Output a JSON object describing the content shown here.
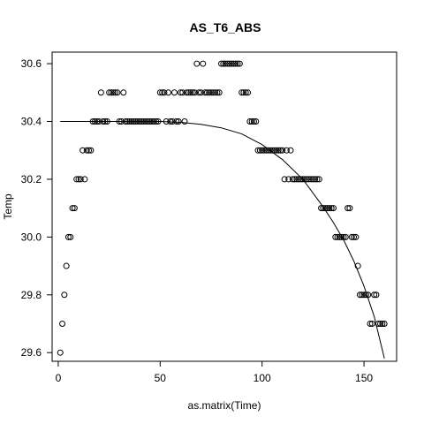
{
  "chart_data": {
    "type": "scatter",
    "title": "AS_T6_ABS",
    "xlabel": "as.matrix(Time)",
    "ylabel": "Temp",
    "xlim": [
      -3,
      166
    ],
    "ylim": [
      29.57,
      30.64
    ],
    "x_ticks": [
      "0",
      "50",
      "100",
      "150"
    ],
    "x_tick_values": [
      0,
      50,
      100,
      150
    ],
    "y_ticks": [
      "29.6",
      "29.8",
      "30.0",
      "30.2",
      "30.4",
      "30.6"
    ],
    "y_tick_values": [
      29.6,
      29.8,
      30.0,
      30.2,
      30.4,
      30.6
    ],
    "grid": false,
    "legend": "none",
    "points": [
      [
        1,
        29.6
      ],
      [
        2,
        29.7
      ],
      [
        3,
        29.8
      ],
      [
        4,
        29.9
      ],
      [
        5,
        30.0
      ],
      [
        6,
        30.0
      ],
      [
        7,
        30.1
      ],
      [
        8,
        30.1
      ],
      [
        9,
        30.2
      ],
      [
        10,
        30.2
      ],
      [
        11,
        30.2
      ],
      [
        12,
        30.3
      ],
      [
        13,
        30.2
      ],
      [
        14,
        30.3
      ],
      [
        15,
        30.3
      ],
      [
        16,
        30.3
      ],
      [
        17,
        30.4
      ],
      [
        18,
        30.4
      ],
      [
        19,
        30.4
      ],
      [
        20,
        30.4
      ],
      [
        21,
        30.5
      ],
      [
        22,
        30.4
      ],
      [
        23,
        30.4
      ],
      [
        24,
        30.4
      ],
      [
        25,
        30.5
      ],
      [
        26,
        30.5
      ],
      [
        27,
        30.5
      ],
      [
        28,
        30.5
      ],
      [
        29,
        30.5
      ],
      [
        30,
        30.4
      ],
      [
        31,
        30.4
      ],
      [
        32,
        30.5
      ],
      [
        33,
        30.4
      ],
      [
        34,
        30.4
      ],
      [
        35,
        30.4
      ],
      [
        36,
        30.4
      ],
      [
        37,
        30.4
      ],
      [
        38,
        30.4
      ],
      [
        39,
        30.4
      ],
      [
        40,
        30.4
      ],
      [
        41,
        30.4
      ],
      [
        42,
        30.4
      ],
      [
        43,
        30.4
      ],
      [
        44,
        30.4
      ],
      [
        45,
        30.4
      ],
      [
        46,
        30.4
      ],
      [
        47,
        30.4
      ],
      [
        48,
        30.4
      ],
      [
        49,
        30.4
      ],
      [
        50,
        30.5
      ],
      [
        51,
        30.5
      ],
      [
        52,
        30.5
      ],
      [
        53,
        30.4
      ],
      [
        54,
        30.5
      ],
      [
        55,
        30.4
      ],
      [
        56,
        30.4
      ],
      [
        57,
        30.5
      ],
      [
        58,
        30.4
      ],
      [
        59,
        30.4
      ],
      [
        60,
        30.5
      ],
      [
        61,
        30.5
      ],
      [
        62,
        30.4
      ],
      [
        63,
        30.5
      ],
      [
        64,
        30.5
      ],
      [
        65,
        30.5
      ],
      [
        66,
        30.5
      ],
      [
        67,
        30.5
      ],
      [
        68,
        30.6
      ],
      [
        69,
        30.5
      ],
      [
        70,
        30.5
      ],
      [
        71,
        30.6
      ],
      [
        72,
        30.5
      ],
      [
        73,
        30.5
      ],
      [
        74,
        30.5
      ],
      [
        75,
        30.5
      ],
      [
        76,
        30.5
      ],
      [
        77,
        30.5
      ],
      [
        78,
        30.5
      ],
      [
        79,
        30.5
      ],
      [
        80,
        30.6
      ],
      [
        81,
        30.6
      ],
      [
        82,
        30.6
      ],
      [
        83,
        30.6
      ],
      [
        84,
        30.6
      ],
      [
        85,
        30.6
      ],
      [
        86,
        30.6
      ],
      [
        87,
        30.6
      ],
      [
        88,
        30.6
      ],
      [
        89,
        30.6
      ],
      [
        90,
        30.5
      ],
      [
        91,
        30.5
      ],
      [
        92,
        30.5
      ],
      [
        93,
        30.5
      ],
      [
        94,
        30.4
      ],
      [
        95,
        30.4
      ],
      [
        96,
        30.4
      ],
      [
        97,
        30.4
      ],
      [
        98,
        30.3
      ],
      [
        99,
        30.3
      ],
      [
        100,
        30.3
      ],
      [
        101,
        30.3
      ],
      [
        102,
        30.3
      ],
      [
        103,
        30.3
      ],
      [
        104,
        30.3
      ],
      [
        105,
        30.3
      ],
      [
        106,
        30.3
      ],
      [
        107,
        30.3
      ],
      [
        108,
        30.3
      ],
      [
        109,
        30.3
      ],
      [
        110,
        30.3
      ],
      [
        111,
        30.2
      ],
      [
        112,
        30.3
      ],
      [
        113,
        30.2
      ],
      [
        114,
        30.3
      ],
      [
        115,
        30.2
      ],
      [
        116,
        30.2
      ],
      [
        117,
        30.2
      ],
      [
        118,
        30.2
      ],
      [
        119,
        30.2
      ],
      [
        120,
        30.2
      ],
      [
        121,
        30.2
      ],
      [
        122,
        30.2
      ],
      [
        123,
        30.2
      ],
      [
        124,
        30.2
      ],
      [
        125,
        30.2
      ],
      [
        126,
        30.2
      ],
      [
        127,
        30.2
      ],
      [
        128,
        30.2
      ],
      [
        129,
        30.1
      ],
      [
        130,
        30.1
      ],
      [
        131,
        30.1
      ],
      [
        132,
        30.1
      ],
      [
        133,
        30.1
      ],
      [
        134,
        30.1
      ],
      [
        135,
        30.1
      ],
      [
        136,
        30.0
      ],
      [
        137,
        30.0
      ],
      [
        138,
        30.0
      ],
      [
        139,
        30.0
      ],
      [
        140,
        30.0
      ],
      [
        141,
        30.0
      ],
      [
        142,
        30.1
      ],
      [
        143,
        30.1
      ],
      [
        144,
        30.0
      ],
      [
        145,
        30.0
      ],
      [
        146,
        30.0
      ],
      [
        147,
        29.9
      ],
      [
        148,
        29.8
      ],
      [
        149,
        29.8
      ],
      [
        150,
        29.8
      ],
      [
        151,
        29.8
      ],
      [
        152,
        29.8
      ],
      [
        153,
        29.7
      ],
      [
        154,
        29.7
      ],
      [
        155,
        29.8
      ],
      [
        156,
        29.8
      ],
      [
        157,
        29.7
      ],
      [
        158,
        29.7
      ],
      [
        159,
        29.7
      ],
      [
        160,
        29.7
      ]
    ],
    "fit_line": [
      [
        1,
        30.4
      ],
      [
        20,
        30.4
      ],
      [
        40,
        30.4
      ],
      [
        50,
        30.4
      ],
      [
        60,
        30.397
      ],
      [
        70,
        30.39
      ],
      [
        80,
        30.378
      ],
      [
        90,
        30.357
      ],
      [
        100,
        30.32
      ],
      [
        110,
        30.268
      ],
      [
        120,
        30.2
      ],
      [
        130,
        30.104
      ],
      [
        135,
        30.05
      ],
      [
        140,
        29.99
      ],
      [
        145,
        29.917
      ],
      [
        150,
        29.83
      ],
      [
        155,
        29.725
      ],
      [
        160,
        29.58
      ]
    ]
  }
}
